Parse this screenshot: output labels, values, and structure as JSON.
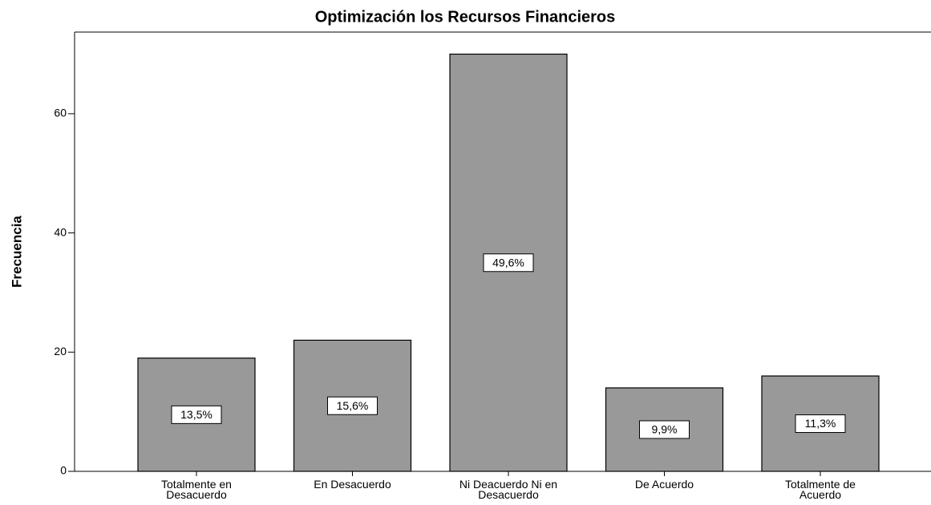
{
  "chart_data": {
    "type": "bar",
    "title": "Optimización los Recursos Financieros",
    "y_label": "Frecuencia",
    "categories": [
      "Totalmente en Desacuerdo",
      "En Desacuerdo",
      "Ni Deacuerdo Ni en Desacuerdo",
      "De Acuerdo",
      "Totalmente de Acuerdo"
    ],
    "values": [
      19,
      22,
      70,
      14,
      16
    ],
    "percent_labels": [
      "13,5%",
      "15,6%",
      "49,6%",
      "9,9%",
      "11,3%"
    ],
    "color": "#999999",
    "ylim": [
      0,
      73.7
    ],
    "yticks": [
      0,
      20,
      40,
      60
    ],
    "grid": false
  }
}
